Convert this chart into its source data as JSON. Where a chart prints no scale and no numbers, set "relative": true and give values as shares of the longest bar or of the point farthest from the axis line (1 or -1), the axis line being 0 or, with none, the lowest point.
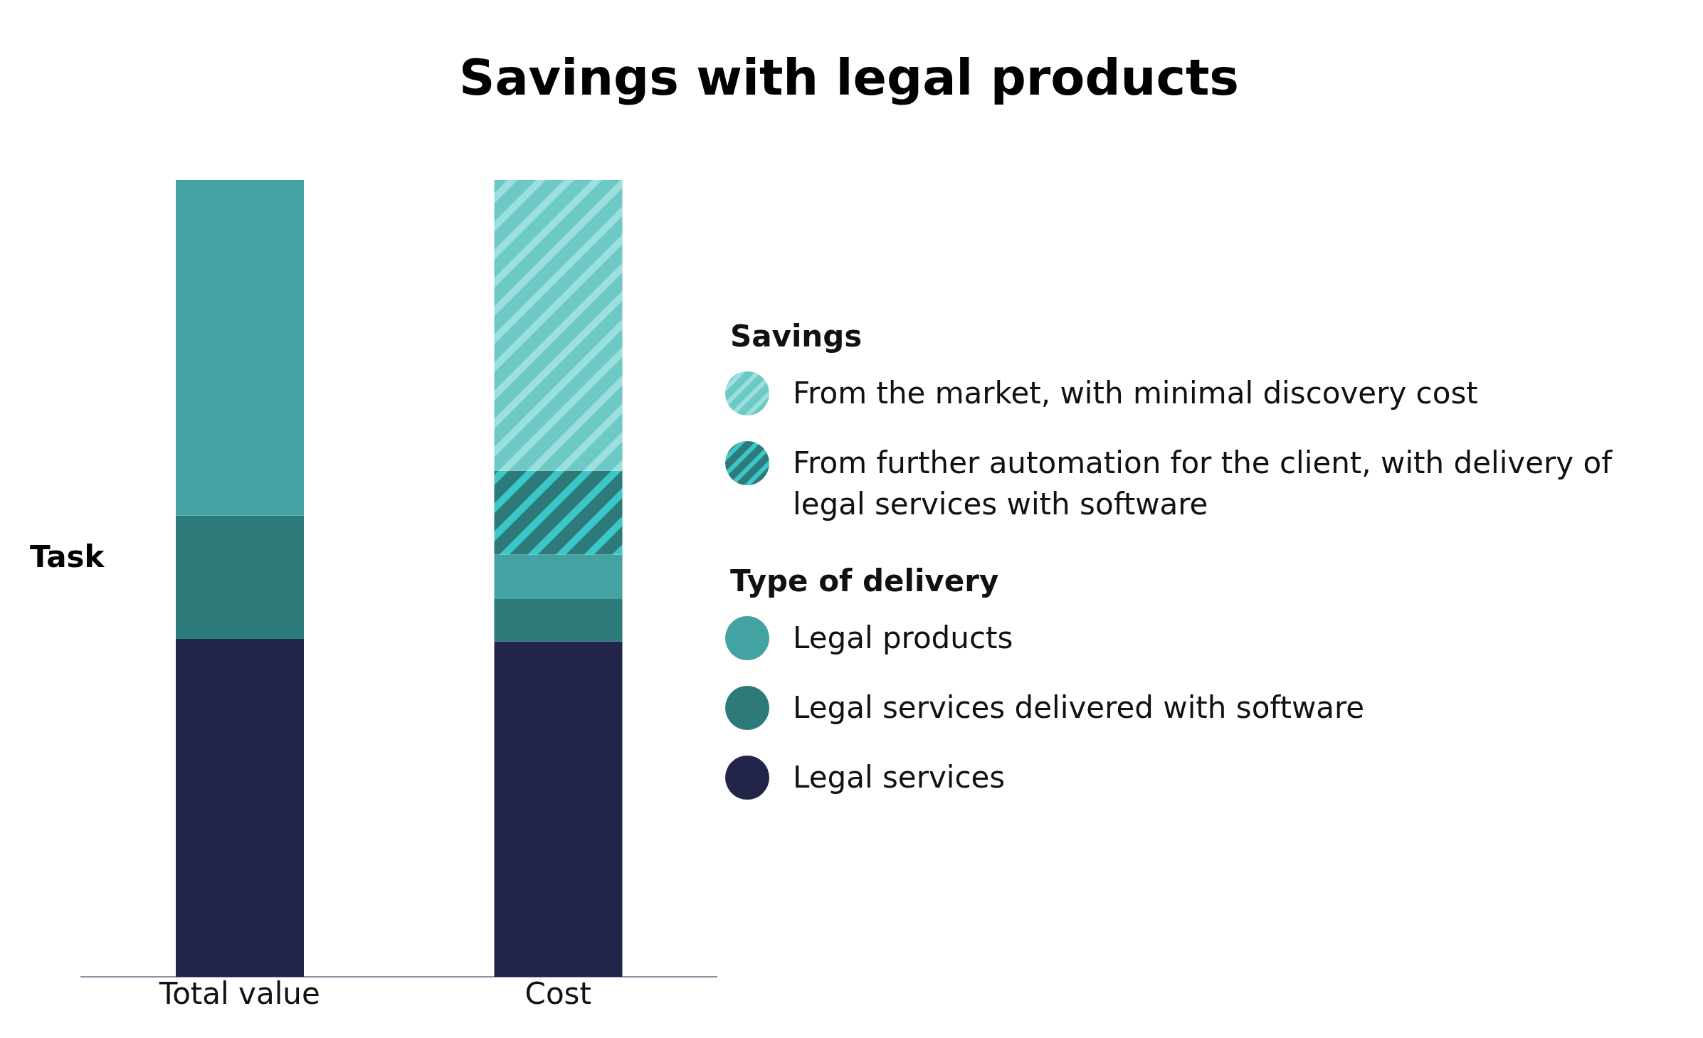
{
  "chart_data": {
    "type": "bar",
    "title": "Savings with legal products",
    "ylabel": "Task",
    "categories": [
      "Total value",
      "Cost"
    ],
    "stacked": true,
    "relative": true,
    "legend": "right",
    "annotations": [
      "Savings",
      "Type of delivery"
    ],
    "series": [
      {
        "name": "Legal services",
        "color": "#23244a",
        "values": [
          0.424,
          0.421
        ]
      },
      {
        "name": "Legal services delivered with software",
        "color": "#2d7a7a",
        "values": [
          0.155,
          0.053
        ]
      },
      {
        "name": "Legal products",
        "color": "#42a3a2",
        "values": [
          0.421,
          0.056
        ]
      },
      {
        "name": "From further automation for the client, with delivery of legal services with software",
        "color": "#2d7a7a",
        "values": [
          null,
          0.105
        ]
      },
      {
        "name": "From the market, with minimal discovery cost",
        "color": "#6cc9c6",
        "values": [
          null,
          0.365
        ]
      }
    ]
  }
}
